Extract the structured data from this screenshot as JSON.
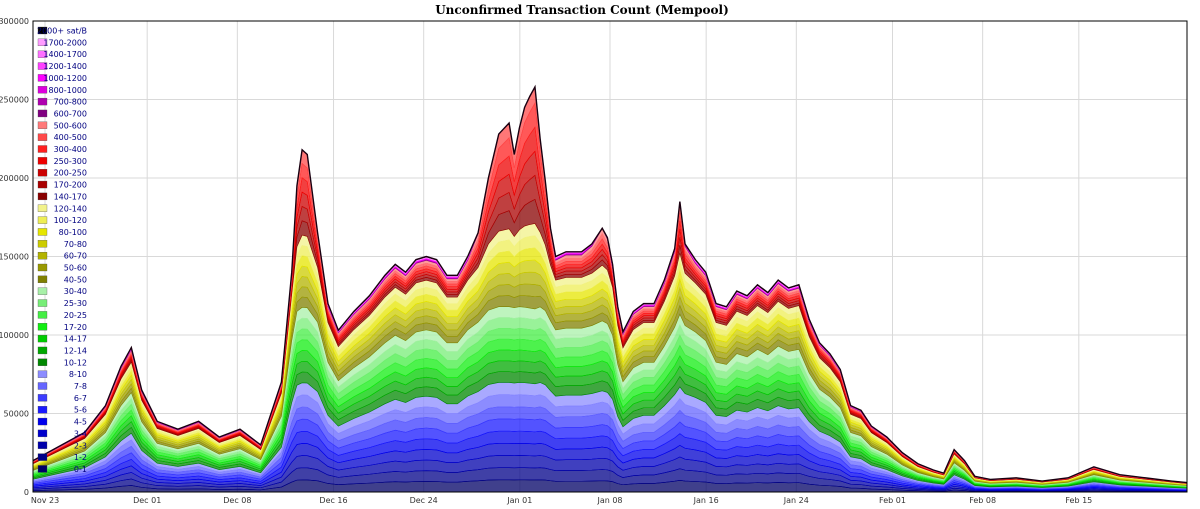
{
  "chart_data": {
    "type": "area",
    "stacked": true,
    "title": "Unconfirmed Transaction Count (Mempool)",
    "xlabel": "",
    "ylabel": "",
    "ylim": [
      0,
      300000
    ],
    "y_ticks": [
      0,
      50000,
      100000,
      150000,
      200000,
      250000,
      300000
    ],
    "x_tick_labels": [
      "Nov 23",
      "Dec 01",
      "Dec 08",
      "Dec 16",
      "Dec 24",
      "Jan 01",
      "Jan 08",
      "Jan 16",
      "Jan 24",
      "Feb 01",
      "Feb 08",
      "Feb 15"
    ],
    "grid": true,
    "legend_position": "top-left",
    "total_series": [
      [
        0,
        20000
      ],
      [
        10,
        38000
      ],
      [
        14,
        55000
      ],
      [
        17,
        80000
      ],
      [
        19,
        92000
      ],
      [
        21,
        65000
      ],
      [
        24,
        45000
      ],
      [
        28,
        40000
      ],
      [
        32,
        45000
      ],
      [
        36,
        35000
      ],
      [
        40,
        40000
      ],
      [
        44,
        30000
      ],
      [
        48,
        70000
      ],
      [
        50,
        140000
      ],
      [
        51,
        195000
      ],
      [
        52,
        218000
      ],
      [
        53,
        215000
      ],
      [
        55,
        165000
      ],
      [
        57,
        120000
      ],
      [
        59,
        103000
      ],
      [
        62,
        115000
      ],
      [
        65,
        125000
      ],
      [
        68,
        138000
      ],
      [
        70,
        145000
      ],
      [
        72,
        140000
      ],
      [
        74,
        148000
      ],
      [
        76,
        150000
      ],
      [
        78,
        148000
      ],
      [
        80,
        138000
      ],
      [
        82,
        138000
      ],
      [
        84,
        150000
      ],
      [
        86,
        165000
      ],
      [
        88,
        200000
      ],
      [
        90,
        228000
      ],
      [
        92,
        235000
      ],
      [
        93,
        215000
      ],
      [
        94,
        232000
      ],
      [
        95,
        245000
      ],
      [
        96,
        252000
      ],
      [
        97,
        258000
      ],
      [
        98,
        225000
      ],
      [
        99,
        198000
      ],
      [
        100,
        168000
      ],
      [
        101,
        150000
      ],
      [
        103,
        153000
      ],
      [
        106,
        153000
      ],
      [
        108,
        158000
      ],
      [
        110,
        168000
      ],
      [
        111,
        162000
      ],
      [
        112,
        145000
      ],
      [
        113,
        118000
      ],
      [
        114,
        102000
      ],
      [
        116,
        115000
      ],
      [
        118,
        120000
      ],
      [
        120,
        120000
      ],
      [
        122,
        135000
      ],
      [
        124,
        155000
      ],
      [
        125,
        185000
      ],
      [
        126,
        158000
      ],
      [
        128,
        148000
      ],
      [
        130,
        140000
      ],
      [
        132,
        120000
      ],
      [
        134,
        118000
      ],
      [
        136,
        128000
      ],
      [
        138,
        125000
      ],
      [
        140,
        132000
      ],
      [
        142,
        127000
      ],
      [
        144,
        135000
      ],
      [
        146,
        130000
      ],
      [
        148,
        132000
      ],
      [
        150,
        110000
      ],
      [
        152,
        95000
      ],
      [
        154,
        88000
      ],
      [
        156,
        78000
      ],
      [
        158,
        55000
      ],
      [
        160,
        52000
      ],
      [
        162,
        42000
      ],
      [
        165,
        35000
      ],
      [
        168,
        25000
      ],
      [
        171,
        18000
      ],
      [
        174,
        14000
      ],
      [
        176,
        12000
      ],
      [
        178,
        27000
      ],
      [
        180,
        20000
      ],
      [
        182,
        10000
      ],
      [
        185,
        8000
      ],
      [
        190,
        9000
      ],
      [
        195,
        7000
      ],
      [
        200,
        9000
      ],
      [
        205,
        16000
      ],
      [
        210,
        11000
      ],
      [
        215,
        9000
      ],
      [
        220,
        7000
      ],
      [
        223,
        6000
      ]
    ],
    "bands": [
      {
        "name": "2000+ sat/B",
        "color": "#000000"
      },
      {
        "name": "1700-2000",
        "color": "#ff9cff"
      },
      {
        "name": "1400-1700",
        "color": "#ff70ff"
      },
      {
        "name": "1200-1400",
        "color": "#ff40ff"
      },
      {
        "name": "1000-1200",
        "color": "#ff00ff"
      },
      {
        "name": "800-1000",
        "color": "#dd00dd"
      },
      {
        "name": "700-800",
        "color": "#b000b0"
      },
      {
        "name": "600-700",
        "color": "#800080"
      },
      {
        "name": "500-600",
        "color": "#ff7a7a"
      },
      {
        "name": "400-500",
        "color": "#ff4a4a"
      },
      {
        "name": "300-400",
        "color": "#ff2020"
      },
      {
        "name": "250-300",
        "color": "#ee0000"
      },
      {
        "name": "200-250",
        "color": "#cc0000"
      },
      {
        "name": "170-200",
        "color": "#aa0000"
      },
      {
        "name": "140-170",
        "color": "#880000"
      },
      {
        "name": "120-140",
        "color": "#f2f28a"
      },
      {
        "name": "100-120",
        "color": "#eeee55"
      },
      {
        "name": "80-100",
        "color": "#e6e600"
      },
      {
        "name": "70-80",
        "color": "#cccc00"
      },
      {
        "name": "60-70",
        "color": "#b3b300"
      },
      {
        "name": "50-60",
        "color": "#999900"
      },
      {
        "name": "40-50",
        "color": "#808000"
      },
      {
        "name": "30-40",
        "color": "#a8f0a8"
      },
      {
        "name": "25-30",
        "color": "#77ee77"
      },
      {
        "name": "20-25",
        "color": "#44ee44"
      },
      {
        "name": "17-20",
        "color": "#11ee11"
      },
      {
        "name": "14-17",
        "color": "#00cc00"
      },
      {
        "name": "12-14",
        "color": "#00a800"
      },
      {
        "name": "10-12",
        "color": "#008800"
      },
      {
        "name": "8-10",
        "color": "#8c8cff"
      },
      {
        "name": "7-8",
        "color": "#6666ff"
      },
      {
        "name": "6-7",
        "color": "#3c3cff"
      },
      {
        "name": "5-6",
        "color": "#1a1aff"
      },
      {
        "name": "4-5",
        "color": "#0000ee"
      },
      {
        "name": "3-4",
        "color": "#0000cc"
      },
      {
        "name": "2-3",
        "color": "#0000aa"
      },
      {
        "name": "1-2",
        "color": "#000088"
      },
      {
        "name": "0-1",
        "color": "#000066"
      }
    ]
  }
}
